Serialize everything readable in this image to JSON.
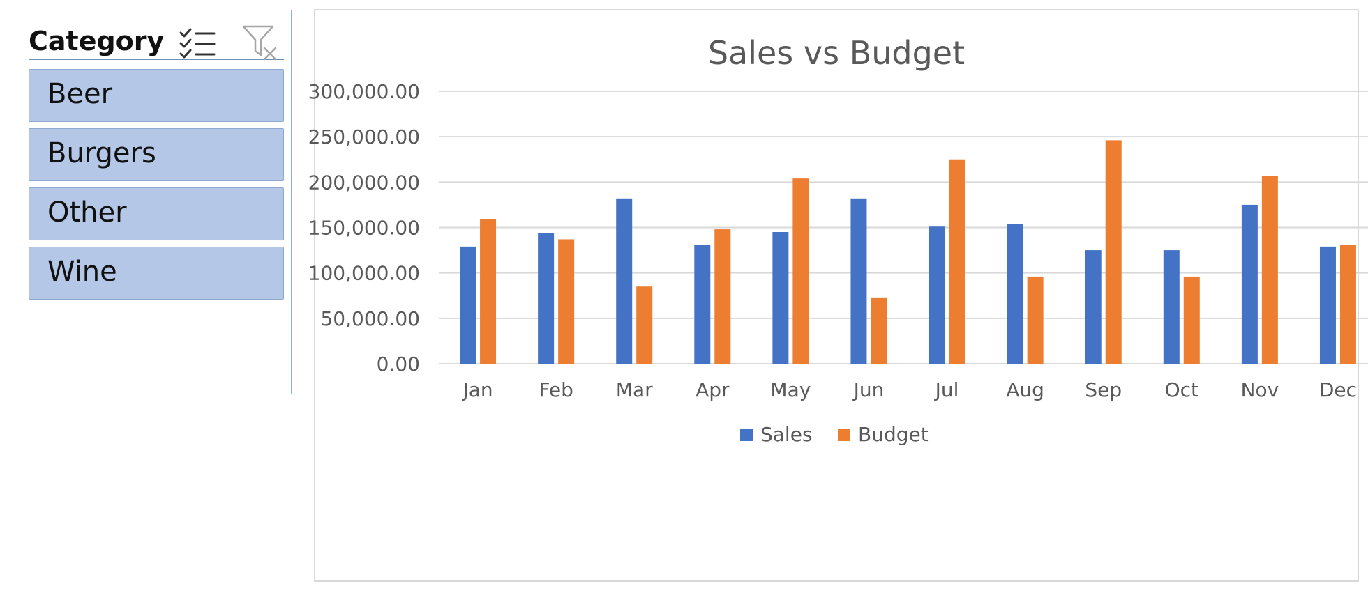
{
  "slicer": {
    "title": "Category",
    "icons": {
      "multiselect": "multiselect-checklist-icon",
      "clear_filter": "clear-filter-icon"
    },
    "items": [
      {
        "label": "Beer"
      },
      {
        "label": "Burgers"
      },
      {
        "label": "Other"
      },
      {
        "label": "Wine"
      }
    ],
    "item_fill": "#b4c7e7"
  },
  "chart_data": {
    "type": "bar",
    "title": "Sales vs Budget",
    "xlabel": "",
    "ylabel": "",
    "categories": [
      "Jan",
      "Feb",
      "Mar",
      "Apr",
      "May",
      "Jun",
      "Jul",
      "Aug",
      "Sep",
      "Oct",
      "Nov",
      "Dec"
    ],
    "series": [
      {
        "name": "Sales",
        "color": "#4472c4",
        "values": [
          129000,
          144000,
          182000,
          131000,
          145000,
          182000,
          151000,
          154000,
          125000,
          125000,
          175000,
          129000
        ]
      },
      {
        "name": "Budget",
        "color": "#ed7d31",
        "values": [
          159000,
          137000,
          85000,
          148000,
          204000,
          73000,
          225000,
          96000,
          246000,
          96000,
          207000,
          131000
        ]
      }
    ],
    "ylim": [
      0,
      300000
    ],
    "yticks": [
      0,
      50000,
      100000,
      150000,
      200000,
      250000,
      300000
    ],
    "ytick_labels": [
      "0.00",
      "50,000.00",
      "100,000.00",
      "150,000.00",
      "200,000.00",
      "250,000.00",
      "300,000.00"
    ],
    "grid": true,
    "legend_position": "bottom"
  }
}
